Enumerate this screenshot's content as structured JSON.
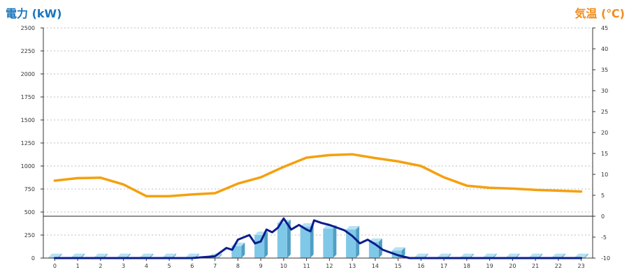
{
  "chart_data": {
    "type": "bar",
    "title": "",
    "left_axis": {
      "label": "電力 (kW)",
      "color": "#1b75bb",
      "ylim": [
        0,
        2500
      ],
      "ticks": [
        0,
        250,
        500,
        750,
        1000,
        1250,
        1500,
        1750,
        2000,
        2250,
        2500
      ]
    },
    "right_axis": {
      "label": "気温 (℃)",
      "color": "#f08c1e",
      "ylim": [
        -10,
        45
      ],
      "ticks": [
        -10,
        -5,
        0,
        5,
        10,
        15,
        20,
        25,
        30,
        35,
        40,
        45
      ]
    },
    "categories": [
      "0",
      "1",
      "2",
      "3",
      "4",
      "5",
      "6",
      "7",
      "8",
      "9",
      "10",
      "11",
      "12",
      "13",
      "14",
      "15",
      "16",
      "17",
      "18",
      "19",
      "20",
      "21",
      "22",
      "23"
    ],
    "grid": true,
    "reference_line": {
      "axis": "right",
      "value": 0
    },
    "series": [
      {
        "type": "bar",
        "axis": "left",
        "color": "#7fc8e8",
        "side_color": "#4f9fc4",
        "values": [
          10,
          10,
          10,
          10,
          10,
          10,
          10,
          10,
          130,
          250,
          380,
          340,
          320,
          310,
          175,
          80,
          10,
          10,
          10,
          10,
          10,
          10,
          10,
          10
        ]
      },
      {
        "type": "line",
        "axis": "left",
        "color": "#0a1d8c",
        "x": [
          0,
          1,
          2,
          3,
          4,
          5,
          6,
          7,
          7.5,
          7.75,
          8,
          8.5,
          8.75,
          9,
          9.25,
          9.5,
          9.75,
          10,
          10.33,
          10.67,
          11,
          11.17,
          11.33,
          11.67,
          12,
          12.33,
          12.67,
          13,
          13.33,
          13.67,
          14,
          14.33,
          14.67,
          15,
          15.5,
          16,
          17,
          18,
          19,
          20,
          21,
          22,
          23
        ],
        "values": [
          0,
          0,
          0,
          0,
          0,
          0,
          0,
          20,
          110,
          90,
          200,
          250,
          160,
          180,
          310,
          280,
          330,
          430,
          310,
          360,
          310,
          290,
          410,
          380,
          360,
          330,
          300,
          240,
          160,
          200,
          150,
          90,
          60,
          30,
          0,
          0,
          0,
          0,
          0,
          0,
          0,
          0,
          0
        ]
      },
      {
        "type": "line",
        "axis": "right",
        "color": "#f5a00f",
        "values": [
          8.5,
          9.1,
          9.2,
          7.6,
          4.8,
          4.8,
          5.2,
          5.5,
          7.8,
          9.3,
          11.8,
          14.0,
          14.6,
          14.8,
          13.9,
          13.1,
          12.0,
          9.3,
          7.3,
          6.8,
          6.6,
          6.3,
          6.1,
          5.9
        ]
      }
    ]
  }
}
